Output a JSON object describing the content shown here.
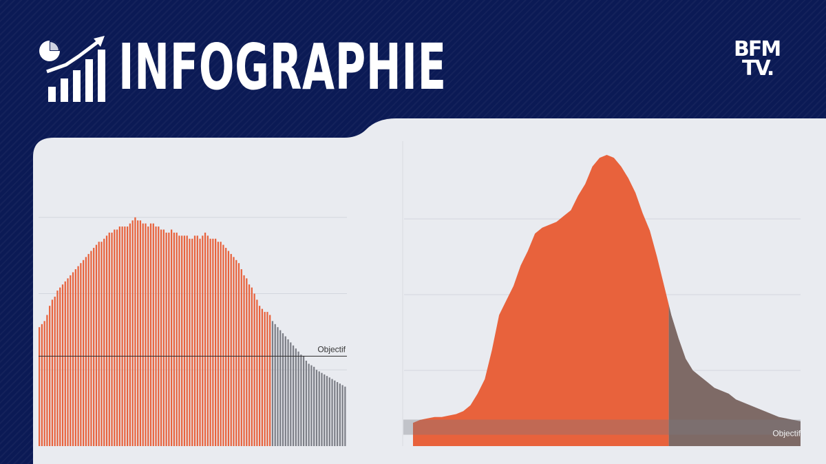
{
  "header": {
    "title": "INFOGRAPHIE",
    "icon": "chart-growth-icon",
    "logo_line1": "BFM",
    "logo_line2": "TV."
  },
  "colors": {
    "background": "#0b1a55",
    "panel": "#e9ebf0",
    "orange": "#e8623c",
    "gray": "#7c7e86",
    "accent": "#ffffff"
  },
  "chart_data": [
    {
      "type": "bar",
      "xlabel": "",
      "ylabel": "",
      "ylim": [
        0,
        1
      ],
      "grid": true,
      "annotation": "Objectif",
      "objective": 0.295,
      "series": [
        {
          "color": "#e8623c",
          "values": [
            0.39,
            0.4,
            0.41,
            0.43,
            0.46,
            0.48,
            0.49,
            0.51,
            0.52,
            0.53,
            0.54,
            0.55,
            0.56,
            0.57,
            0.58,
            0.59,
            0.6,
            0.61,
            0.62,
            0.63,
            0.64,
            0.65,
            0.66,
            0.67,
            0.67,
            0.68,
            0.69,
            0.7,
            0.7,
            0.71,
            0.71,
            0.72,
            0.72,
            0.72,
            0.72,
            0.73,
            0.74,
            0.75,
            0.74,
            0.74,
            0.73,
            0.73,
            0.72,
            0.73,
            0.73,
            0.72,
            0.72,
            0.71,
            0.71,
            0.7,
            0.7,
            0.71,
            0.7,
            0.7,
            0.69,
            0.69,
            0.69,
            0.69,
            0.68,
            0.68,
            0.69,
            0.69,
            0.68,
            0.69,
            0.7,
            0.69,
            0.68,
            0.68,
            0.68,
            0.67,
            0.67,
            0.66,
            0.65,
            0.64,
            0.63,
            0.62,
            0.61,
            0.6,
            0.58,
            0.56,
            0.55,
            0.53,
            0.52,
            0.5,
            0.48,
            0.46,
            0.45,
            0.44,
            0.44,
            0.43
          ]
        },
        {
          "color": "#7c7e86",
          "values": [
            0.41,
            0.4,
            0.39,
            0.38,
            0.37,
            0.36,
            0.35,
            0.34,
            0.33,
            0.32,
            0.31,
            0.3,
            0.295,
            0.28,
            0.27,
            0.265,
            0.26,
            0.25,
            0.245,
            0.24,
            0.235,
            0.23,
            0.225,
            0.22,
            0.215,
            0.21,
            0.205,
            0.2,
            0.195
          ]
        }
      ]
    },
    {
      "type": "area",
      "xlabel": "",
      "ylabel": "",
      "ylim": [
        0,
        1
      ],
      "grid": true,
      "annotation": "Objectif",
      "objective": 0.065,
      "split_fraction": 0.66,
      "series": [
        {
          "color": "#e8623c",
          "values": [
            0.08,
            0.09,
            0.095,
            0.1,
            0.1,
            0.105,
            0.11,
            0.12,
            0.14,
            0.18,
            0.23,
            0.33,
            0.45,
            0.5,
            0.55,
            0.62,
            0.67,
            0.73,
            0.75,
            0.76,
            0.77,
            0.79,
            0.81,
            0.86,
            0.9,
            0.96,
            0.99,
            1.0,
            0.99,
            0.96,
            0.92,
            0.87,
            0.8,
            0.74,
            0.65,
            0.55,
            0.45,
            0.37,
            0.3,
            0.26,
            0.24,
            0.22,
            0.2,
            0.19,
            0.18,
            0.16,
            0.15,
            0.14,
            0.13,
            0.12,
            0.11,
            0.1,
            0.095,
            0.09,
            0.085
          ]
        }
      ]
    }
  ]
}
